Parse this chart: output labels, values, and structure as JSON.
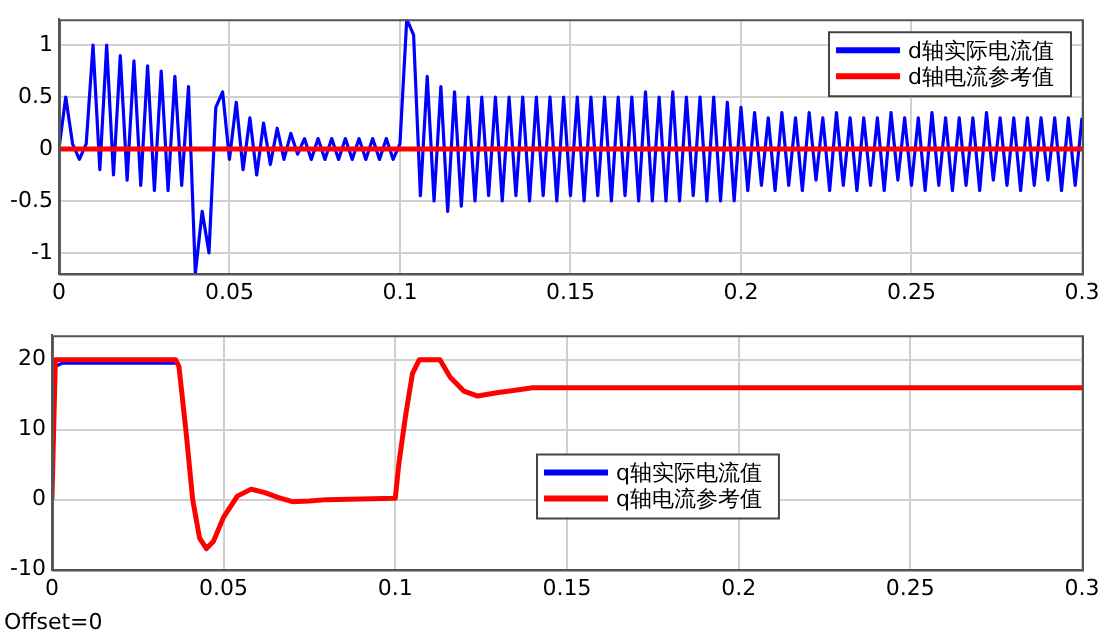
{
  "chart_data": [
    {
      "type": "line",
      "legend": "top right",
      "grid": true,
      "xlim": [
        0,
        0.3
      ],
      "ylim": [
        -1.2,
        1.25
      ],
      "xticks": [
        0,
        0.05,
        0.1,
        0.15,
        0.2,
        0.25,
        0.3
      ],
      "yticks": [
        -1,
        -0.5,
        0,
        0.5,
        1
      ],
      "series": [
        {
          "name": "d轴实际电流值",
          "color": "#0000ff",
          "x": [
            0,
            0.002,
            0.004,
            0.006,
            0.008,
            0.01,
            0.012,
            0.014,
            0.016,
            0.018,
            0.02,
            0.022,
            0.024,
            0.026,
            0.028,
            0.03,
            0.032,
            0.034,
            0.036,
            0.038,
            0.04,
            0.042,
            0.044,
            0.046,
            0.048,
            0.05,
            0.052,
            0.054,
            0.056,
            0.058,
            0.06,
            0.062,
            0.064,
            0.066,
            0.068,
            0.07,
            0.072,
            0.074,
            0.076,
            0.078,
            0.08,
            0.082,
            0.084,
            0.086,
            0.088,
            0.09,
            0.092,
            0.094,
            0.096,
            0.098,
            0.1,
            0.102,
            0.104,
            0.106,
            0.108,
            0.11,
            0.112,
            0.114,
            0.116,
            0.118,
            0.12,
            0.122,
            0.124,
            0.126,
            0.128,
            0.13,
            0.132,
            0.134,
            0.136,
            0.138,
            0.14,
            0.142,
            0.144,
            0.146,
            0.148,
            0.15,
            0.152,
            0.154,
            0.156,
            0.158,
            0.16,
            0.162,
            0.164,
            0.166,
            0.168,
            0.17,
            0.172,
            0.174,
            0.176,
            0.178,
            0.18,
            0.182,
            0.184,
            0.186,
            0.188,
            0.19,
            0.192,
            0.194,
            0.196,
            0.198,
            0.2,
            0.202,
            0.204,
            0.206,
            0.208,
            0.21,
            0.212,
            0.214,
            0.216,
            0.218,
            0.22,
            0.222,
            0.224,
            0.226,
            0.228,
            0.23,
            0.232,
            0.234,
            0.236,
            0.238,
            0.24,
            0.242,
            0.244,
            0.246,
            0.248,
            0.25,
            0.252,
            0.254,
            0.256,
            0.258,
            0.26,
            0.262,
            0.264,
            0.266,
            0.268,
            0.27,
            0.272,
            0.274,
            0.276,
            0.278,
            0.28,
            0.282,
            0.284,
            0.286,
            0.288,
            0.29,
            0.292,
            0.294,
            0.296,
            0.298,
            0.3
          ],
          "values": [
            0,
            0.5,
            0.05,
            -0.1,
            0.05,
            1,
            -0.2,
            1,
            -0.25,
            0.9,
            -0.3,
            0.85,
            -0.35,
            0.8,
            -0.4,
            0.75,
            -0.4,
            0.7,
            -0.35,
            0.6,
            -1.2,
            -0.6,
            -1,
            0.4,
            0.55,
            -0.1,
            0.45,
            -0.2,
            0.3,
            -0.25,
            0.25,
            -0.15,
            0.2,
            -0.1,
            0.15,
            -0.05,
            0.1,
            -0.1,
            0.1,
            -0.1,
            0.1,
            -0.1,
            0.1,
            -0.1,
            0.1,
            -0.1,
            0.1,
            -0.1,
            0.1,
            -0.1,
            0.05,
            1.25,
            1.1,
            -0.45,
            0.7,
            -0.5,
            0.6,
            -0.6,
            0.55,
            -0.55,
            0.5,
            -0.5,
            0.5,
            -0.45,
            0.5,
            -0.5,
            0.5,
            -0.45,
            0.5,
            -0.5,
            0.5,
            -0.45,
            0.5,
            -0.5,
            0.5,
            -0.45,
            0.5,
            -0.5,
            0.5,
            -0.45,
            0.5,
            -0.5,
            0.5,
            -0.45,
            0.5,
            -0.5,
            0.55,
            -0.5,
            0.5,
            -0.5,
            0.55,
            -0.5,
            0.5,
            -0.45,
            0.5,
            -0.5,
            0.5,
            -0.5,
            0.45,
            -0.5,
            0.4,
            -0.4,
            0.35,
            -0.35,
            0.3,
            -0.4,
            0.35,
            -0.35,
            0.3,
            -0.4,
            0.35,
            -0.3,
            0.3,
            -0.4,
            0.35,
            -0.35,
            0.3,
            -0.4,
            0.3,
            -0.35,
            0.3,
            -0.4,
            0.35,
            -0.3,
            0.3,
            -0.35,
            0.3,
            -0.4,
            0.35,
            -0.35,
            0.3,
            -0.4,
            0.3,
            -0.35,
            0.3,
            -0.4,
            0.35,
            -0.3,
            0.3,
            -0.35,
            0.3,
            -0.4,
            0.3,
            -0.35,
            0.3,
            -0.3,
            0.3,
            -0.4,
            0.3,
            -0.35,
            0.3
          ]
        },
        {
          "name": "d轴电流参考值",
          "color": "#ff0000",
          "x": [
            0,
            0.3
          ],
          "values": [
            0,
            0
          ]
        }
      ]
    },
    {
      "type": "line",
      "legend": "bottom",
      "grid": true,
      "xlim": [
        0,
        0.3
      ],
      "ylim": [
        -10,
        23.5
      ],
      "xticks": [
        0,
        0.05,
        0.1,
        0.15,
        0.2,
        0.25,
        0.3
      ],
      "yticks": [
        -10,
        0,
        10,
        20
      ],
      "annotations": [
        "Offset=0"
      ],
      "series": [
        {
          "name": "q轴实际电流值",
          "color": "#0000ff",
          "x": [
            0.001,
            0.003,
            0.036
          ],
          "values": [
            19,
            19.5,
            19.5
          ]
        },
        {
          "name": "q轴电流参考值",
          "color": "#ff0000",
          "x": [
            0,
            0.001,
            0.003,
            0.036,
            0.037,
            0.039,
            0.041,
            0.043,
            0.045,
            0.047,
            0.05,
            0.054,
            0.058,
            0.062,
            0.066,
            0.07,
            0.075,
            0.08,
            0.1,
            0.101,
            0.103,
            0.105,
            0.107,
            0.113,
            0.116,
            0.12,
            0.124,
            0.13,
            0.14,
            0.15,
            0.3
          ],
          "values": [
            0,
            20,
            20,
            20,
            19,
            10,
            0,
            -5.5,
            -7,
            -6,
            -2.5,
            0.5,
            1.5,
            1,
            0.3,
            -0.3,
            -0.2,
            0,
            0.2,
            5,
            12,
            18,
            20,
            20,
            17.5,
            15.5,
            14.8,
            15.3,
            16,
            16,
            16
          ]
        }
      ]
    }
  ]
}
